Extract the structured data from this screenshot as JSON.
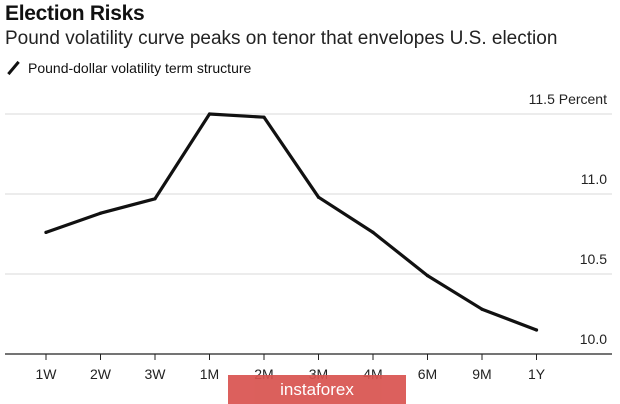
{
  "chart_data": {
    "type": "line",
    "title": "Election Risks",
    "subtitle": "Pound volatility curve peaks on tenor that envelopes U.S. election",
    "series": [
      {
        "name": "Pound-dollar volatility term structure",
        "values": [
          10.76,
          10.88,
          10.97,
          11.5,
          11.48,
          10.98,
          10.76,
          10.49,
          10.28,
          10.15
        ]
      }
    ],
    "categories": [
      "1W",
      "2W",
      "3W",
      "1M",
      "2M",
      "3M",
      "4M",
      "6M",
      "9M",
      "1Y"
    ],
    "y_ticks": [
      {
        "value": 10.0,
        "label": "10.0"
      },
      {
        "value": 10.5,
        "label": "10.5"
      },
      {
        "value": 11.0,
        "label": "11.0"
      },
      {
        "value": 11.5,
        "label": "11.5 Percent"
      }
    ],
    "ylim": [
      10.0,
      11.5
    ],
    "grid": true,
    "legend_position": "top-left",
    "line_color": "#111111",
    "grid_color": "#d9d9d9"
  },
  "watermark": {
    "text": "instaforex",
    "color": "#d9534f"
  }
}
